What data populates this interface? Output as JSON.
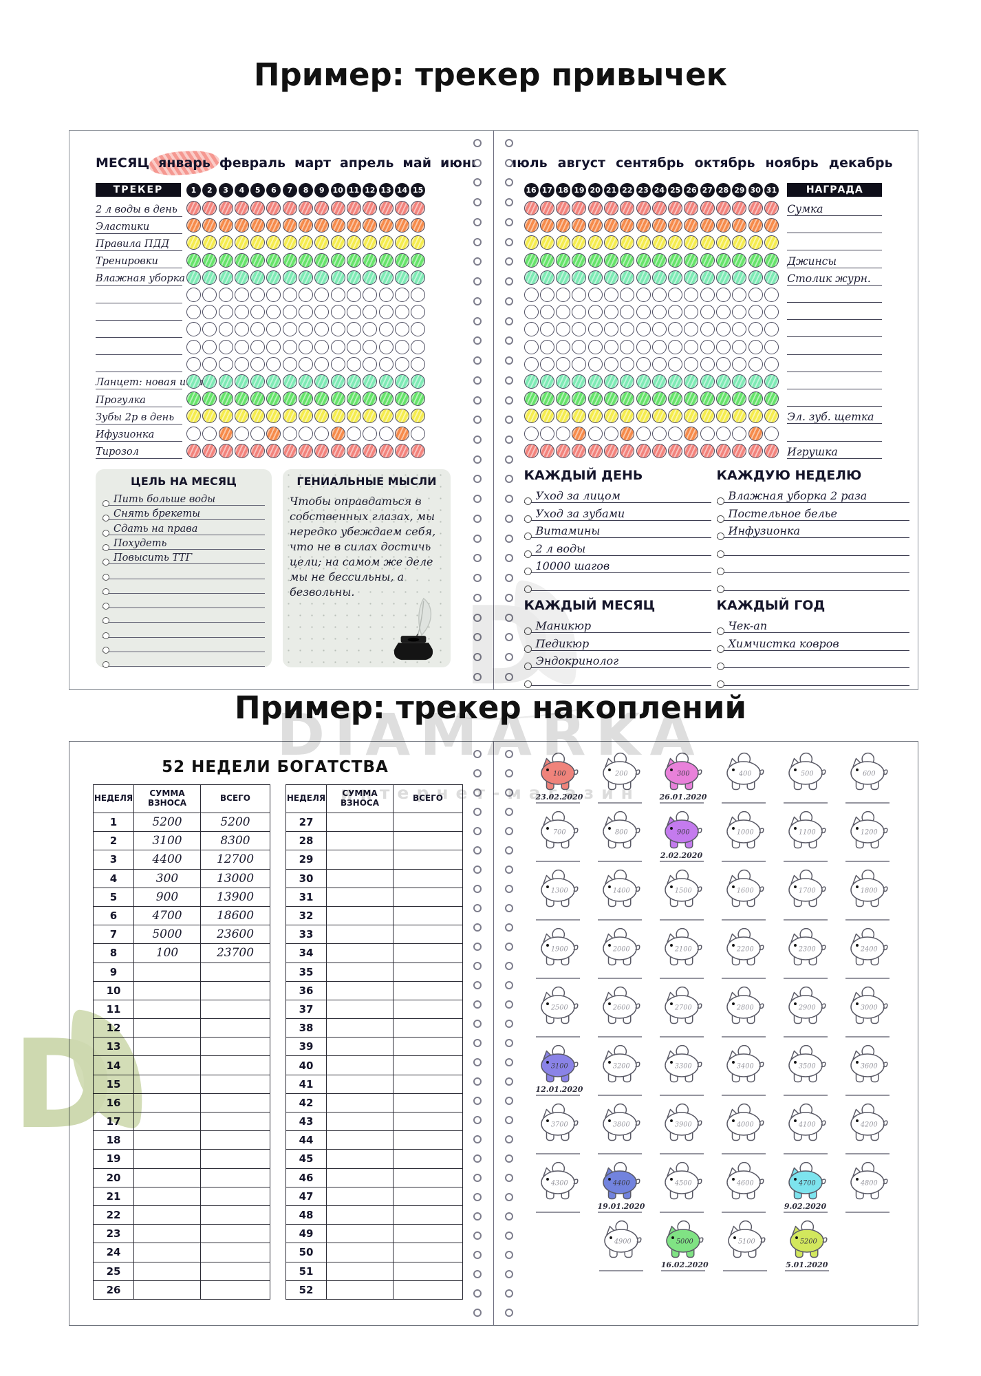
{
  "titles": {
    "habit_example": "Пример: трекер привычек",
    "savings_example": "Пример: трекер накоплений"
  },
  "watermarks": {
    "brand": "DIAMARKA",
    "subtitle": "интернет-магазин",
    "logo_letter": "D",
    "brand_gray": "#c9c9c9",
    "logo_green": "#c6d2a2"
  },
  "habit": {
    "month_caption": "МЕСЯЦ",
    "left_months": [
      "январь",
      "февраль",
      "март",
      "апрель",
      "май",
      "июнь"
    ],
    "right_months": [
      "июль",
      "август",
      "сентябрь",
      "октябрь",
      "ноябрь",
      "декабрь"
    ],
    "highlighted_month": "январь",
    "highlight_color": "#f07a70",
    "tracker_caption": "ТРЕКЕР",
    "reward_caption": "НАГРАДА",
    "left_days": [
      1,
      2,
      3,
      4,
      5,
      6,
      7,
      8,
      9,
      10,
      11,
      12,
      13,
      14,
      15
    ],
    "right_days": [
      16,
      17,
      18,
      19,
      20,
      21,
      22,
      23,
      24,
      25,
      26,
      27,
      28,
      29,
      30,
      31
    ],
    "palette": {
      "red": "#f2837c",
      "orange": "#f68b4b",
      "yellow": "#f5ec4e",
      "green": "#66e36a",
      "mint": "#7eeab5",
      "spot": "#f68b4b"
    },
    "rows": [
      {
        "label": "2 л воды в день",
        "color": "red",
        "reward": "Сумка"
      },
      {
        "label": "Эластики",
        "color": "orange",
        "reward": ""
      },
      {
        "label": "Правила ПДД",
        "color": "yellow",
        "reward": ""
      },
      {
        "label": "Тренировки",
        "color": "green",
        "reward": "Джинсы"
      },
      {
        "label": "Влажная уборка",
        "color": "mint",
        "reward": "Столик журн."
      },
      {
        "label": "",
        "color": "",
        "reward": ""
      },
      {
        "label": "",
        "color": "",
        "reward": ""
      },
      {
        "label": "",
        "color": "",
        "reward": ""
      },
      {
        "label": "",
        "color": "",
        "reward": ""
      },
      {
        "label": "",
        "color": "",
        "reward": ""
      },
      {
        "label": "Ланцет: новая игла",
        "color": "mint",
        "reward": ""
      },
      {
        "label": "Прогулка",
        "color": "green",
        "reward": ""
      },
      {
        "label": "Зубы 2р в день",
        "color": "yellow",
        "reward": "Эл. зуб. щетка"
      },
      {
        "label": "Ифузионка",
        "color": "spots",
        "reward": "",
        "left_spots": [
          3,
          6,
          10,
          14
        ],
        "right_spots": [
          4,
          7,
          11,
          15
        ]
      },
      {
        "label": "Тирозол",
        "color": "red",
        "reward": "Игрушка"
      }
    ],
    "goal_box": {
      "title": "ЦЕЛЬ НА МЕСЯЦ",
      "items": [
        "Пить больше воды",
        "Снять брекеты",
        "Сдать на права",
        "Похудеть",
        "Повысить ТТГ",
        "",
        "",
        "",
        "",
        "",
        "",
        ""
      ]
    },
    "thoughts_box": {
      "title": "ГЕНИАЛЬНЫЕ МЫСЛИ",
      "text": "Чтобы оправдаться в собственных глазах, мы нередко убеждаем себя, что не в силах достичь цели; на самом же деле мы не бессильны, а безвольны."
    },
    "period_sections": [
      {
        "title": "КАЖДЫЙ ДЕНЬ",
        "items": [
          "Уход за лицом",
          "Уход за зубами",
          "Витамины",
          "2 л воды",
          "10000 шагов",
          ""
        ]
      },
      {
        "title": "КАЖДУЮ НЕДЕЛЮ",
        "items": [
          "Влажная уборка 2 раза",
          "Постельное белье",
          "Инфузионка",
          "",
          "",
          ""
        ]
      },
      {
        "title": "КАЖДЫЙ МЕСЯЦ",
        "items": [
          "Маникюр",
          "Педикюр",
          "Эндокринолог",
          ""
        ]
      },
      {
        "title": "КАЖДЫЙ ГОД",
        "items": [
          "Чек-ап",
          "Химчистка ковров",
          "",
          ""
        ]
      }
    ]
  },
  "savings": {
    "title": "52 НЕДЕЛИ БОГАТСТВА",
    "headers": [
      "НЕДЕЛЯ",
      "СУММА ВЗНОСА",
      "ВСЕГО"
    ],
    "left_weeks": [
      1,
      2,
      3,
      4,
      5,
      6,
      7,
      8,
      9,
      10,
      11,
      12,
      13,
      14,
      15,
      16,
      17,
      18,
      19,
      20,
      21,
      22,
      23,
      24,
      25,
      26
    ],
    "right_weeks": [
      27,
      28,
      29,
      30,
      31,
      32,
      33,
      34,
      35,
      36,
      37,
      38,
      39,
      40,
      41,
      42,
      43,
      44,
      45,
      46,
      47,
      48,
      49,
      50,
      51,
      52
    ],
    "filled": {
      "1": [
        "5200",
        "5200"
      ],
      "2": [
        "3100",
        "8300"
      ],
      "3": [
        "4400",
        "12700"
      ],
      "4": [
        "300",
        "13000"
      ],
      "5": [
        "900",
        "13900"
      ],
      "6": [
        "4700",
        "18600"
      ],
      "7": [
        "5000",
        "23600"
      ],
      "8": [
        "100",
        "23700"
      ]
    },
    "pig_values": [
      100,
      200,
      300,
      400,
      500,
      600,
      700,
      800,
      900,
      1000,
      1100,
      1200,
      1300,
      1400,
      1500,
      1600,
      1700,
      1800,
      1900,
      2000,
      2100,
      2200,
      2300,
      2400,
      2500,
      2600,
      2700,
      2800,
      2900,
      3000,
      3100,
      3200,
      3300,
      3400,
      3500,
      3600,
      3700,
      3800,
      3900,
      4000,
      4100,
      4200,
      4300,
      4400,
      4500,
      4600,
      4700,
      4800,
      4900,
      5000,
      5100,
      5200
    ],
    "pig_marks": [
      {
        "value": 100,
        "color": "#ef837b",
        "date": "23.02.2020"
      },
      {
        "value": 300,
        "color": "#e981da",
        "date": "26.01.2020"
      },
      {
        "value": 900,
        "color": "#c47bee",
        "date": "2.02.2020"
      },
      {
        "value": 3100,
        "color": "#8a83e7",
        "date": "12.01.2020"
      },
      {
        "value": 4400,
        "color": "#7283de",
        "date": "19.01.2020"
      },
      {
        "value": 4700,
        "color": "#7de4ee",
        "date": "9.02.2020"
      },
      {
        "value": 5000,
        "color": "#80e384",
        "date": "16.02.2020"
      },
      {
        "value": 5200,
        "color": "#d2e75d",
        "date": "5.01.2020"
      }
    ]
  }
}
